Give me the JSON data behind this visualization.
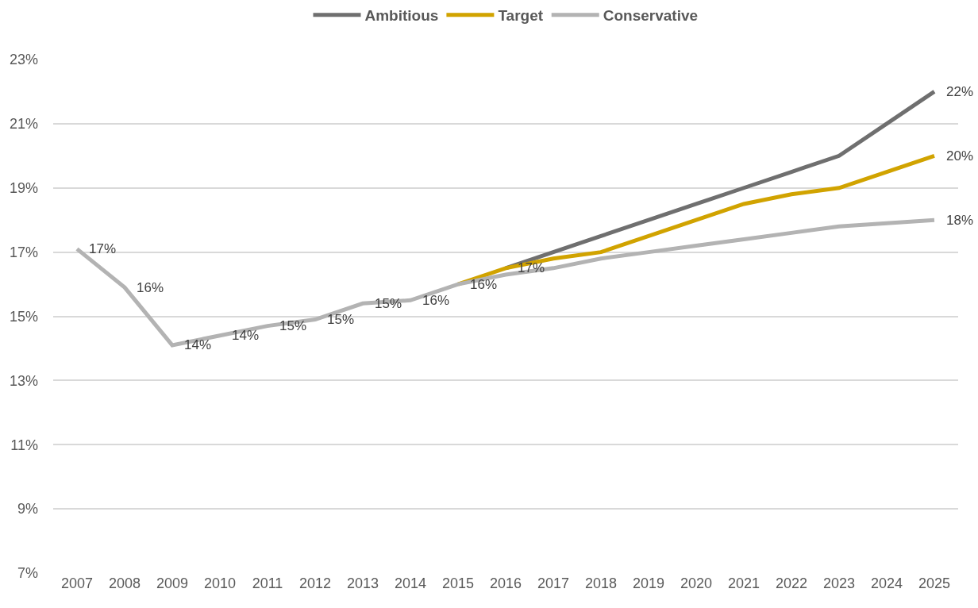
{
  "chart_data": {
    "type": "line",
    "categories": [
      "2007",
      "2008",
      "2009",
      "2010",
      "2011",
      "2012",
      "2013",
      "2014",
      "2015",
      "2016",
      "2017",
      "2018",
      "2019",
      "2020",
      "2021",
      "2022",
      "2023",
      "2024",
      "2025"
    ],
    "series": [
      {
        "name": "Ambitious",
        "color": "#6f6f6f",
        "values": [
          null,
          null,
          null,
          null,
          null,
          null,
          null,
          null,
          null,
          16.5,
          17.0,
          17.5,
          18.0,
          18.5,
          19.0,
          19.5,
          20.0,
          21.0,
          22.0
        ],
        "value_labels": [
          null,
          null,
          null,
          null,
          null,
          null,
          null,
          null,
          null,
          null,
          null,
          null,
          null,
          null,
          null,
          null,
          null,
          null,
          "22%"
        ]
      },
      {
        "name": "Target",
        "color": "#d1a300",
        "values": [
          null,
          null,
          null,
          null,
          null,
          null,
          null,
          null,
          16.0,
          16.5,
          16.8,
          17.0,
          17.5,
          18.0,
          18.5,
          18.8,
          19.0,
          19.5,
          20.0
        ],
        "value_labels": [
          null,
          null,
          null,
          null,
          null,
          null,
          null,
          null,
          null,
          "17%",
          null,
          null,
          null,
          null,
          null,
          null,
          null,
          null,
          "20%"
        ]
      },
      {
        "name": "Conservative",
        "color": "#b3b3b3",
        "values": [
          17.1,
          15.9,
          14.1,
          14.4,
          14.7,
          14.9,
          15.4,
          15.5,
          16.0,
          16.3,
          16.5,
          16.8,
          17.0,
          17.2,
          17.4,
          17.6,
          17.8,
          17.9,
          18.0
        ],
        "value_labels": [
          "17%",
          "16%",
          "14%",
          "14%",
          "15%",
          "15%",
          "15%",
          "16%",
          "16%",
          null,
          null,
          null,
          null,
          null,
          null,
          null,
          null,
          null,
          "18%"
        ]
      }
    ],
    "ylim": [
      7,
      23
    ],
    "yticks": [
      {
        "value": 7,
        "label": "7%"
      },
      {
        "value": 9,
        "label": "9%"
      },
      {
        "value": 11,
        "label": "11%"
      },
      {
        "value": 13,
        "label": "13%"
      },
      {
        "value": 15,
        "label": "15%"
      },
      {
        "value": 17,
        "label": "17%"
      },
      {
        "value": 19,
        "label": "19%"
      },
      {
        "value": 21,
        "label": "21%"
      },
      {
        "value": 23,
        "label": "23%"
      }
    ],
    "grid": "y",
    "legend": "top",
    "line_style": "solid"
  }
}
